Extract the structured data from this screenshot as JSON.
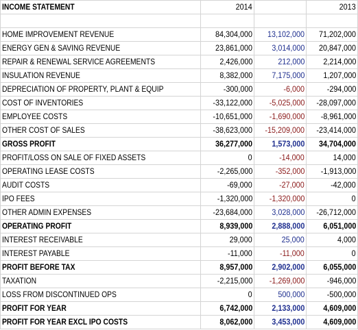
{
  "table": {
    "header": [
      "INCOME STATEMENT",
      "2014",
      "",
      "2013"
    ],
    "rows": [
      {
        "cells": [
          "HOME IMPROVEMENT REVENUE",
          "84,304,000",
          "13,102,000",
          "71,202,000"
        ]
      },
      {
        "cells": [
          "ENERGY GEN & SAVING REVENUE",
          "23,861,000",
          "3,014,000",
          "20,847,000"
        ]
      },
      {
        "cells": [
          "REPAIR & RENEWAL SERVICE AGREEMENTS",
          "2,426,000",
          "212,000",
          "2,214,000"
        ]
      },
      {
        "cells": [
          "INSULATION REVENUE",
          "8,382,000",
          "7,175,000",
          "1,207,000"
        ]
      },
      {
        "cells": [
          "DEPRECIATION OF PROPERTY, PLANT & EQUIP",
          "-300,000",
          "-6,000",
          "-294,000"
        ]
      },
      {
        "cells": [
          "COST OF INVENTORIES",
          "-33,122,000",
          "-5,025,000",
          "-28,097,000"
        ]
      },
      {
        "cells": [
          "EMPLOYEE COSTS",
          "-10,651,000",
          "-1,690,000",
          "-8,961,000"
        ]
      },
      {
        "cells": [
          "OTHER COST OF SALES",
          "-38,623,000",
          "-15,209,000",
          "-23,414,000"
        ]
      },
      {
        "cells": [
          "GROSS PROFIT",
          "36,277,000",
          "1,573,000",
          "34,704,000"
        ],
        "bold": true
      },
      {
        "cells": [
          "PROFIT/LOSS ON SALE OF FIXED ASSETS",
          "0",
          "-14,000",
          "14,000"
        ]
      },
      {
        "cells": [
          "OPERATING LEASE COSTS",
          "-2,265,000",
          "-352,000",
          "-1,913,000"
        ]
      },
      {
        "cells": [
          "AUDIT COSTS",
          "-69,000",
          "-27,000",
          "-42,000"
        ]
      },
      {
        "cells": [
          "IPO FEES",
          "-1,320,000",
          "-1,320,000",
          "0"
        ]
      },
      {
        "cells": [
          "OTHER ADMIN EXPENSES",
          "-23,684,000",
          "3,028,000",
          "-26,712,000"
        ]
      },
      {
        "cells": [
          "OPERATING PROFIT",
          "8,939,000",
          "2,888,000",
          "6,051,000"
        ],
        "bold": true
      },
      {
        "cells": [
          "INTEREST RECEIVABLE",
          "29,000",
          "25,000",
          "4,000"
        ]
      },
      {
        "cells": [
          "INTEREST PAYABLE",
          "-11,000",
          "-11,000",
          "0"
        ]
      },
      {
        "cells": [
          "PROFIT BEFORE TAX",
          "8,957,000",
          "2,902,000",
          "6,055,000"
        ],
        "bold": true
      },
      {
        "cells": [
          "TAXATION",
          "-2,215,000",
          "-1,269,000",
          "-946,000"
        ]
      },
      {
        "cells": [
          "LOSS FROM DISCONTINUED OPS",
          "0",
          "500,000",
          "-500,000"
        ]
      },
      {
        "cells": [
          "PROFIT FOR YEAR",
          "6,742,000",
          "2,133,000",
          "4,609,000"
        ],
        "bold": true
      },
      {
        "cells": [
          "PROFIT FOR YEAR EXCL IPO COSTS",
          "8,062,000",
          "3,453,000",
          "4,609,000"
        ],
        "bold": true
      }
    ]
  }
}
